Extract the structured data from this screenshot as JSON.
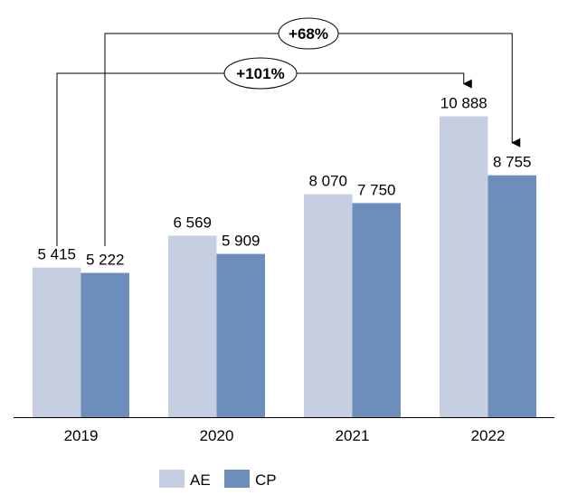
{
  "chart_data": {
    "type": "bar",
    "title": "",
    "xlabel": "",
    "ylabel": "",
    "categories": [
      "2019",
      "2020",
      "2021",
      "2022"
    ],
    "series": [
      {
        "name": "AE",
        "color": "#c5cfe1",
        "values": [
          5415,
          6569,
          8070,
          10888
        ],
        "labels": [
          "5 415",
          "6 569",
          "8 070",
          "10 888"
        ]
      },
      {
        "name": "CP",
        "color": "#6d8dba",
        "values": [
          5222,
          5909,
          7750,
          8755
        ],
        "labels": [
          "5 222",
          "5 909",
          "7 750",
          "8 755"
        ]
      }
    ],
    "ylim": [
      0,
      15100
    ],
    "grid": false,
    "legend": "bottom",
    "annotations": [
      {
        "text": "+101%",
        "from": "2019 AE",
        "to": "2022 AE"
      },
      {
        "text": "+68%",
        "from": "2019 CP",
        "to": "2022 CP"
      }
    ]
  }
}
